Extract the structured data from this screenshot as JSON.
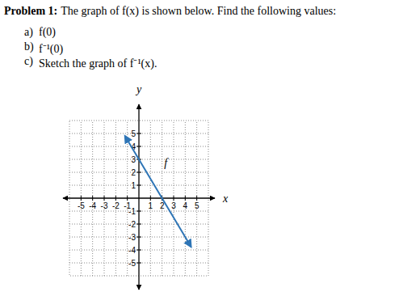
{
  "problem": {
    "label": "Problem 1:",
    "statement": "The graph of f(x) is shown below.  Find the following values:",
    "items": [
      {
        "letter": "a)",
        "text": "f(0)"
      },
      {
        "letter": "b)",
        "text": "f⁻¹(0)"
      },
      {
        "letter": "c)",
        "text": "Sketch the graph of f⁻¹(x)."
      }
    ]
  },
  "chart_data": {
    "type": "line",
    "x_label": "x",
    "y_label": "y",
    "xlim": [
      -6,
      6
    ],
    "ylim": [
      -6,
      6
    ],
    "xticks": [
      -5,
      -4,
      -3,
      -2,
      -1,
      1,
      2,
      3,
      4,
      5
    ],
    "yticks": [
      -5,
      -4,
      -3,
      -2,
      -1,
      1,
      2,
      3,
      4,
      5
    ],
    "grid": true,
    "series": [
      {
        "name": "f",
        "color": "#2e75b6",
        "marker": "arrow",
        "x": [
          -1.2,
          4.5
        ],
        "values": [
          4.8,
          -3.75
        ]
      }
    ]
  }
}
